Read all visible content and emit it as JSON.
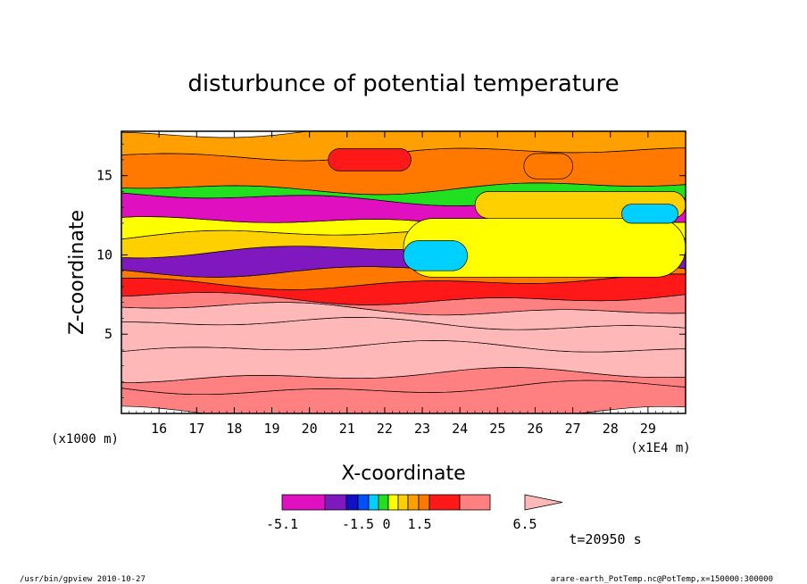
{
  "chart_data": {
    "type": "heatmap",
    "title": "disturbunce of potential temperature",
    "xlabel": "X-coordinate",
    "xunit": "(x1E4 m)",
    "ylabel": "Z-coordinate",
    "yunit": "(x1000 m)",
    "xlim": [
      15.0,
      30.0
    ],
    "ylim": [
      0.0,
      17.8
    ],
    "xticks": [
      "16",
      "17",
      "18",
      "19",
      "20",
      "21",
      "22",
      "23",
      "24",
      "25",
      "26",
      "27",
      "28",
      "29"
    ],
    "yticks": [
      "5",
      "10",
      "15"
    ],
    "colorbar": {
      "labels": [
        "-5.1",
        "-1.5",
        "0",
        "1.5",
        "6.5"
      ],
      "levels": [
        -5.1,
        -3.9,
        -3.0,
        -2.1,
        -1.5,
        -1.0,
        -0.5,
        0.0,
        0.5,
        1.0,
        1.5,
        3.0,
        4.5,
        6.5
      ],
      "colors": [
        "#e010c0",
        "#8018c0",
        "#1010c8",
        "#0050ff",
        "#00d0ff",
        "#20e020",
        "#ffff00",
        "#ffd000",
        "#ffa000",
        "#ff7800",
        "#ff1818",
        "#ff8080",
        "#ffb8b8"
      ]
    },
    "bands": [
      {
        "z0": 0.0,
        "z1": 1.6,
        "value": 3.5
      },
      {
        "z0": 1.6,
        "z1": 2.4,
        "value": 4.0
      },
      {
        "z0": 2.4,
        "z1": 4.1,
        "value": 5.5
      },
      {
        "z0": 4.1,
        "z1": 5.6,
        "value": 6.0
      },
      {
        "z0": 5.6,
        "z1": 6.6,
        "value": 5.0
      },
      {
        "z0": 6.6,
        "z1": 7.3,
        "value": 3.8
      },
      {
        "z0": 7.3,
        "z1": 8.3,
        "value": 2.5
      },
      {
        "z0": 8.3,
        "z1": 9.1,
        "value": 1.2
      },
      {
        "z0": 9.1,
        "z1": 10.3,
        "value": -3.2
      },
      {
        "z0": 10.3,
        "z1": 11.2,
        "value": 0.2
      },
      {
        "z0": 11.2,
        "z1": 12.0,
        "value": -0.3
      },
      {
        "z0": 12.0,
        "z1": 13.6,
        "value": -4.2
      },
      {
        "z0": 13.6,
        "z1": 14.3,
        "value": -0.7
      },
      {
        "z0": 14.3,
        "z1": 16.4,
        "value": 1.3
      },
      {
        "z0": 16.4,
        "z1": 17.8,
        "value": 0.6
      }
    ],
    "regions": [
      {
        "x0": 22.5,
        "x1": 30.0,
        "z0": 8.6,
        "z1": 12.3,
        "value": -0.3
      },
      {
        "x0": 22.5,
        "x1": 24.2,
        "z0": 9.0,
        "z1": 10.9,
        "value": -1.2
      },
      {
        "x0": 24.4,
        "x1": 30.0,
        "z0": 12.3,
        "z1": 14.0,
        "value": 0.4
      },
      {
        "x0": 28.3,
        "x1": 29.8,
        "z0": 12.0,
        "z1": 13.2,
        "value": -1.2
      },
      {
        "x0": 20.5,
        "x1": 22.7,
        "z0": 15.3,
        "z1": 16.7,
        "value": 1.8
      },
      {
        "x0": 25.7,
        "x1": 27.0,
        "z0": 14.8,
        "z1": 16.4,
        "value": 1.2
      }
    ]
  },
  "annotations": {
    "time": "t=20950 s",
    "footer_left": "/usr/bin/gpview  2010-10-27",
    "footer_right": "arare-earth_PotTemp.nc@PotTemp,x=150000:300000"
  }
}
